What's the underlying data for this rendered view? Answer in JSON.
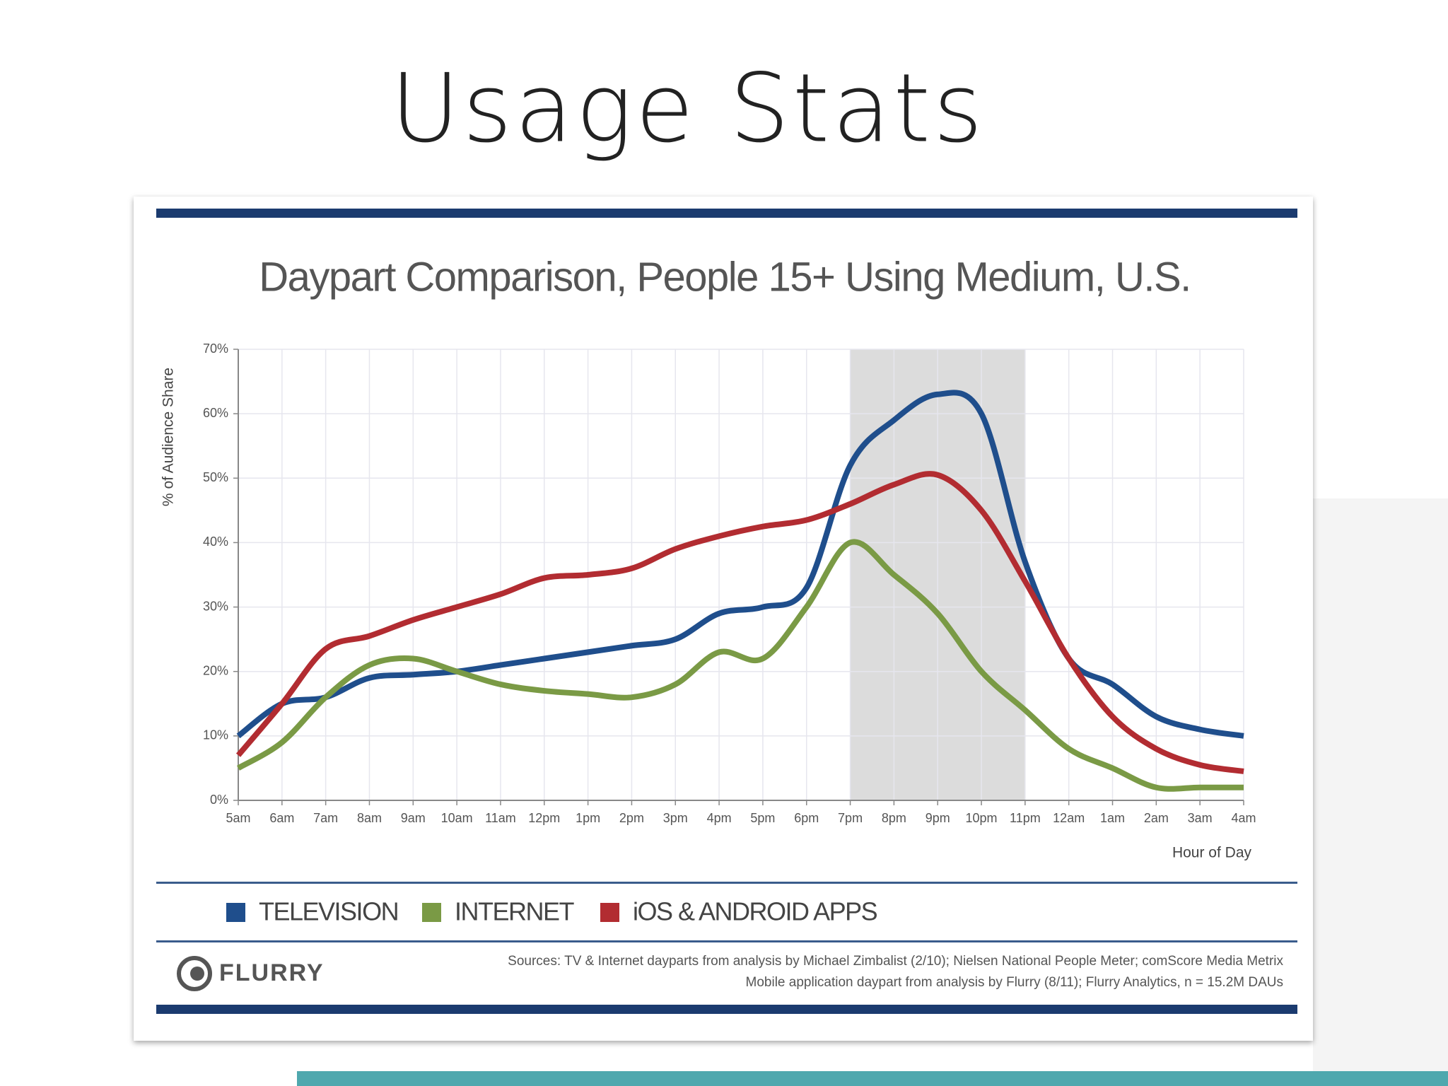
{
  "slide_title": "Usage Stats",
  "chart_data": {
    "type": "line",
    "title": "Daypart Comparison, People 15+ Using Medium, U.S.",
    "y_label": "% of Audience Share",
    "x_label": "Hour of Day",
    "categories": [
      "5am",
      "6am",
      "7am",
      "8am",
      "9am",
      "10am",
      "11am",
      "12pm",
      "1pm",
      "2pm",
      "3pm",
      "4pm",
      "5pm",
      "6pm",
      "7pm",
      "8pm",
      "9pm",
      "10pm",
      "11pm",
      "12am",
      "1am",
      "2am",
      "3am",
      "4am"
    ],
    "series": [
      {
        "name": "TELEVISION",
        "color": "#1f4e8c",
        "values": [
          10,
          15,
          16,
          19,
          19.5,
          20,
          21,
          22,
          23,
          24,
          25,
          29,
          30,
          33,
          52,
          59,
          63,
          60,
          37,
          22,
          18,
          13,
          11,
          10
        ]
      },
      {
        "name": "INTERNET",
        "color": "#7a9a45",
        "values": [
          5,
          9,
          16,
          21,
          22,
          20,
          18,
          17,
          16.5,
          16,
          18,
          23,
          22,
          30,
          40,
          35,
          29,
          20,
          14,
          8,
          5,
          2,
          2,
          2
        ]
      },
      {
        "name": "iOS & ANDROID APPS",
        "color": "#b22c31",
        "values": [
          7,
          15,
          23.5,
          25.5,
          28,
          30,
          32,
          34.5,
          35,
          36,
          39,
          41,
          42.5,
          43.5,
          46,
          49,
          50.5,
          45,
          34,
          22,
          13,
          8,
          5.5,
          4.5
        ]
      }
    ],
    "ylim": [
      0,
      70
    ],
    "yticks": [
      {
        "value": 0,
        "label": "0%"
      },
      {
        "value": 10,
        "label": "10%"
      },
      {
        "value": 20,
        "label": "20%"
      },
      {
        "value": 30,
        "label": "30%"
      },
      {
        "value": 40,
        "label": "40%"
      },
      {
        "value": 50,
        "label": "50%"
      },
      {
        "value": 60,
        "label": "60%"
      },
      {
        "value": 70,
        "label": "70%"
      }
    ],
    "grid": true,
    "highlight": [
      "7pm",
      "11pm"
    ],
    "highlight_color": "#dcdcdc"
  },
  "footer": {
    "logo": "FLURRY",
    "sources": [
      "Sources: TV & Internet dayparts from analysis by Michael Zimbalist (2/10); Nielsen National People Meter; comScore Media Metrix",
      "Mobile application daypart from analysis by Flurry (8/11); Flurry Analytics, n = 15.2M DAUs"
    ]
  }
}
